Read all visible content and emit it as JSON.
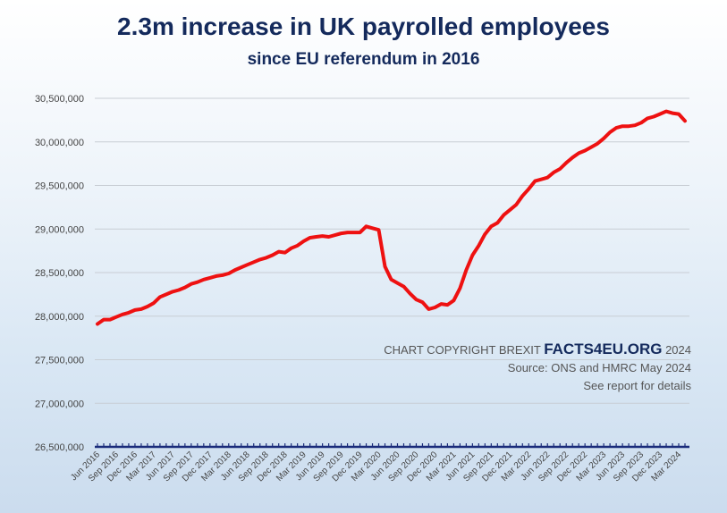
{
  "chart_data": {
    "type": "line",
    "title": "2.3m increase in UK payrolled employees",
    "subtitle": "since EU referendum in 2016",
    "xlabel": "",
    "ylabel": "",
    "ylim": [
      26500000,
      30500000
    ],
    "yticks": [
      "26,500,000",
      "27,000,000",
      "27,500,000",
      "28,000,000",
      "28,500,000",
      "29,000,000",
      "29,500,000",
      "30,000,000",
      "30,500,000"
    ],
    "ytick_values": [
      26500000,
      27000000,
      27500000,
      28000000,
      28500000,
      29000000,
      29500000,
      30000000,
      30500000
    ],
    "x_start": "Jun 2016",
    "x_end": "Apr 2024",
    "xticks": [
      "Jun 2016",
      "Sep 2016",
      "Dec 2016",
      "Mar 2017",
      "Jun 2017",
      "Sep 2017",
      "Dec 2017",
      "Mar 2018",
      "Jun 2018",
      "Sep 2018",
      "Dec 2018",
      "Mar 2019",
      "Jun 2019",
      "Sep 2019",
      "Dec 2019",
      "Mar 2020",
      "Jun 2020",
      "Sep 2020",
      "Dec 2020",
      "Mar 2021",
      "Jun 2021",
      "Sep 2021",
      "Dec 2021",
      "Mar 2022",
      "Jun 2022",
      "Sep 2022",
      "Dec 2022",
      "Mar 2023",
      "Jun 2023",
      "Sep 2023",
      "Dec 2023",
      "Mar 2024"
    ],
    "grid": true,
    "series": [
      {
        "color": "#ee1111",
        "values": [
          27910000,
          27960000,
          27960000,
          27990000,
          28020000,
          28040000,
          28070000,
          28080000,
          28110000,
          28150000,
          28220000,
          28250000,
          28280000,
          28300000,
          28330000,
          28370000,
          28390000,
          28420000,
          28440000,
          28460000,
          28470000,
          28490000,
          28530000,
          28560000,
          28590000,
          28620000,
          28650000,
          28670000,
          28700000,
          28740000,
          28730000,
          28780000,
          28810000,
          28860000,
          28900000,
          28910000,
          28920000,
          28910000,
          28930000,
          28950000,
          28960000,
          28960000,
          28960000,
          29030000,
          29010000,
          28990000,
          28570000,
          28420000,
          28380000,
          28340000,
          28260000,
          28190000,
          28160000,
          28080000,
          28100000,
          28140000,
          28130000,
          28180000,
          28320000,
          28530000,
          28700000,
          28810000,
          28940000,
          29030000,
          29070000,
          29160000,
          29220000,
          29280000,
          29380000,
          29460000,
          29550000,
          29570000,
          29590000,
          29650000,
          29690000,
          29760000,
          29820000,
          29870000,
          29900000,
          29940000,
          29980000,
          30040000,
          30110000,
          30160000,
          30180000,
          30180000,
          30190000,
          30220000,
          30270000,
          30290000,
          30320000,
          30350000,
          30330000,
          30320000,
          30240000
        ]
      }
    ]
  },
  "credit": {
    "copyright_prefix": "CHART COPYRIGHT BREXIT ",
    "brand": "FACTS4EU.ORG",
    "year": " 2024",
    "source": "Source: ONS and HMRC May 2024",
    "note": "See report for details"
  }
}
